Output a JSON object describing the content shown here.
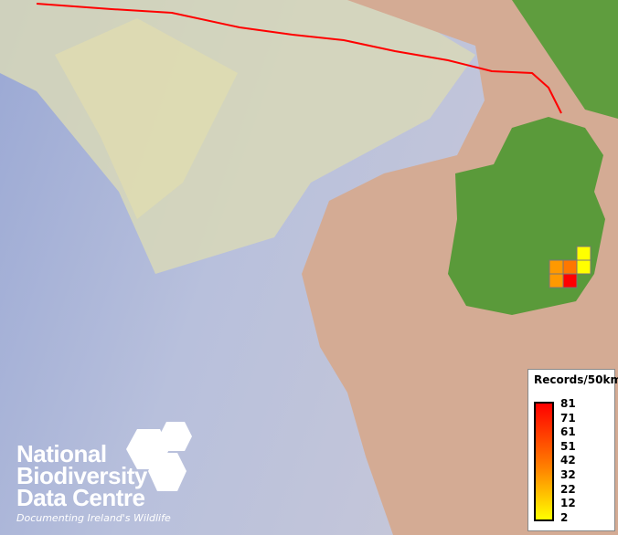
{
  "legend": {
    "title": "Records/50km",
    "scale": [
      "81",
      "71",
      "61",
      "51",
      "42",
      "32",
      "22",
      "12",
      "2"
    ],
    "colors": {
      "high": "#ff0000",
      "mid": "#ff8000",
      "low": "#ffff00"
    }
  },
  "logo": {
    "line1": "National",
    "line2": "Biodiversity",
    "line3": "Data Centre",
    "tagline": "Documenting Ireland's Wildlife"
  },
  "grid_cells": [
    {
      "color": "#ffff00"
    },
    {
      "color": "#ffff00"
    },
    {
      "color": "#ff9900"
    },
    {
      "color": "#ff7700"
    },
    {
      "color": "#ff9900"
    },
    {
      "color": "#ff0000"
    }
  ],
  "colors": {
    "boundary": "#ff0000",
    "land": "#5a9a3a",
    "shelf": "#d8b090",
    "deep_sea": "#8a98cc"
  }
}
